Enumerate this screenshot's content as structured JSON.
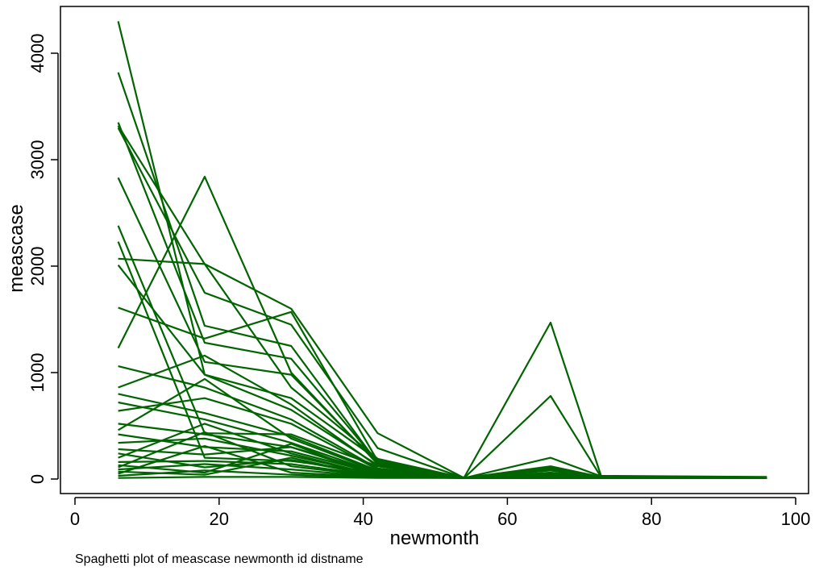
{
  "chart_data": {
    "type": "line",
    "title": "",
    "xlabel": "newmonth",
    "ylabel": "meascase",
    "note": "Spaghetti plot of meascase newmonth id distname",
    "xlim": [
      0,
      100
    ],
    "ylim": [
      0,
      4300
    ],
    "xticks": [
      0,
      20,
      40,
      60,
      80,
      100
    ],
    "yticks": [
      0,
      1000,
      2000,
      3000,
      4000
    ],
    "grid": false,
    "legend": "none",
    "line_color": "#006400",
    "x": [
      6,
      18,
      30,
      42,
      54,
      66,
      73,
      96
    ],
    "series": [
      {
        "values": [
          4300,
          980,
          650,
          130,
          10,
          90,
          20,
          15
        ]
      },
      {
        "values": [
          3820,
          1440,
          1250,
          150,
          15,
          1470,
          30,
          20
        ]
      },
      {
        "values": [
          3350,
          1280,
          1130,
          160,
          10,
          780,
          20,
          15
        ]
      },
      {
        "values": [
          3320,
          2020,
          1600,
          430,
          10,
          200,
          25,
          15
        ]
      },
      {
        "values": [
          3300,
          1750,
          1450,
          290,
          10,
          120,
          20,
          12
        ]
      },
      {
        "values": [
          2830,
          1100,
          980,
          150,
          10,
          100,
          15,
          10
        ]
      },
      {
        "values": [
          2380,
          430,
          420,
          120,
          10,
          80,
          10,
          10
        ]
      },
      {
        "values": [
          2230,
          200,
          170,
          60,
          10,
          60,
          10,
          10
        ]
      },
      {
        "values": [
          2070,
          2020,
          860,
          190,
          10,
          90,
          15,
          10
        ]
      },
      {
        "values": [
          2010,
          980,
          760,
          180,
          10,
          110,
          15,
          10
        ]
      },
      {
        "values": [
          1610,
          1320,
          1570,
          170,
          10,
          60,
          10,
          8
        ]
      },
      {
        "values": [
          1230,
          2840,
          1000,
          140,
          10,
          50,
          10,
          8
        ]
      },
      {
        "values": [
          1060,
          860,
          560,
          100,
          10,
          40,
          10,
          8
        ]
      },
      {
        "values": [
          860,
          1160,
          700,
          120,
          10,
          40,
          10,
          8
        ]
      },
      {
        "values": [
          800,
          620,
          400,
          80,
          10,
          30,
          10,
          8
        ]
      },
      {
        "values": [
          720,
          560,
          340,
          60,
          10,
          30,
          10,
          8
        ]
      },
      {
        "values": [
          640,
          760,
          520,
          90,
          10,
          30,
          10,
          8
        ]
      },
      {
        "values": [
          520,
          420,
          300,
          60,
          10,
          20,
          10,
          8
        ]
      },
      {
        "values": [
          460,
          940,
          380,
          70,
          10,
          20,
          10,
          8
        ]
      },
      {
        "values": [
          420,
          300,
          260,
          50,
          10,
          20,
          10,
          8
        ]
      },
      {
        "values": [
          340,
          380,
          220,
          40,
          10,
          15,
          10,
          8
        ]
      },
      {
        "values": [
          280,
          230,
          300,
          40,
          10,
          15,
          10,
          8
        ]
      },
      {
        "values": [
          240,
          110,
          180,
          30,
          10,
          10,
          10,
          8
        ]
      },
      {
        "values": [
          200,
          520,
          240,
          30,
          10,
          10,
          10,
          8
        ]
      },
      {
        "values": [
          160,
          170,
          140,
          30,
          10,
          10,
          10,
          8
        ]
      },
      {
        "values": [
          130,
          60,
          330,
          25,
          10,
          10,
          10,
          8
        ]
      },
      {
        "values": [
          110,
          440,
          120,
          25,
          10,
          10,
          10,
          8
        ]
      },
      {
        "values": [
          90,
          140,
          90,
          20,
          10,
          10,
          10,
          8
        ]
      },
      {
        "values": [
          70,
          40,
          200,
          20,
          10,
          10,
          10,
          8
        ]
      },
      {
        "values": [
          50,
          310,
          60,
          20,
          10,
          10,
          10,
          8
        ]
      },
      {
        "values": [
          30,
          80,
          40,
          15,
          10,
          10,
          10,
          8
        ]
      },
      {
        "values": [
          10,
          20,
          20,
          10,
          10,
          10,
          10,
          8
        ]
      }
    ]
  }
}
